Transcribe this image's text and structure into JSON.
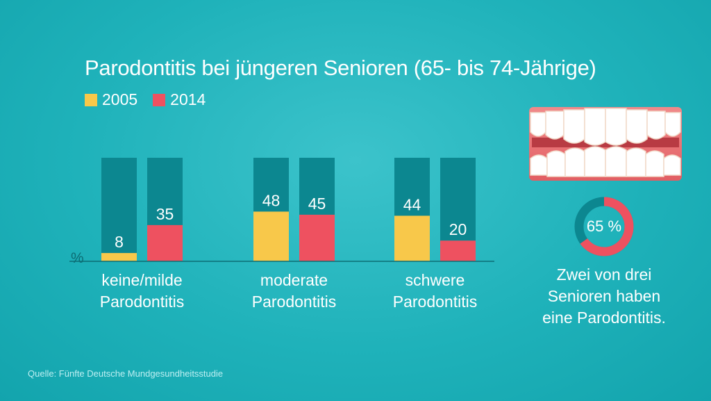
{
  "chart_data": {
    "type": "bar",
    "title": "Parodontitis bei jüngeren Senioren (65- bis 74-Jährige)",
    "ylabel": "%",
    "ylim": [
      0,
      100
    ],
    "categories": [
      [
        "keine/milde",
        "Parodontitis"
      ],
      [
        "moderate",
        "Parodontitis"
      ],
      [
        "schwere",
        "Parodontitis"
      ]
    ],
    "series": [
      {
        "name": "2005",
        "color": "#f8c84a",
        "values": [
          8,
          48,
          44
        ]
      },
      {
        "name": "2014",
        "color": "#ee5160",
        "values": [
          35,
          45,
          20
        ]
      }
    ],
    "background_bar_color": "#0c8790",
    "legend": "top-left"
  },
  "side": {
    "donut_value": 65,
    "donut_label": "65 %",
    "donut_color": "#ee5160",
    "donut_rest_color": "#0c8790",
    "caption_lines": [
      "Zwei von drei",
      "Senioren haben",
      "eine Parodontitis."
    ],
    "teeth_icon": "teeth-illustration"
  },
  "source": "Quelle: Fünfte Deutsche Mundgesundheitsstudie"
}
